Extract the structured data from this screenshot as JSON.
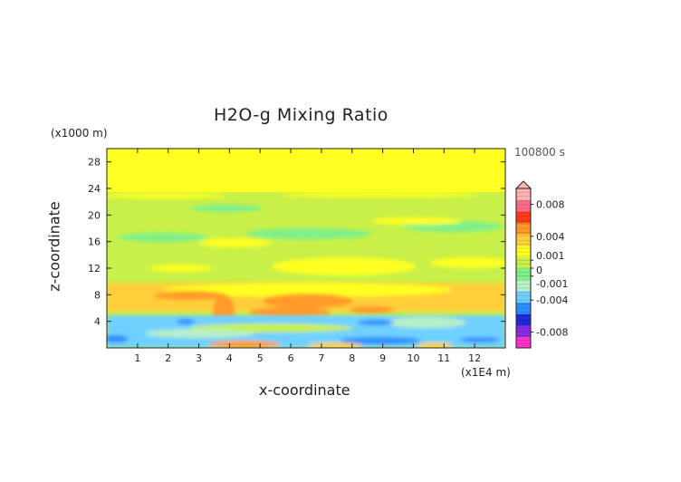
{
  "title": "H2O-g Mixing Ratio",
  "time_label": "100800 s",
  "chart_data": {
    "type": "heatmap",
    "title": "H2O-g Mixing Ratio",
    "xlabel": "x-coordinate",
    "ylabel": "z-coordinate",
    "x_unit": "(x1E4 m)",
    "y_unit": "(x1000 m)",
    "xlim": [
      0,
      13
    ],
    "ylim": [
      0,
      30
    ],
    "x_ticks": [
      "1",
      "2",
      "3",
      "4",
      "5",
      "6",
      "7",
      "8",
      "9",
      "10",
      "11",
      "12"
    ],
    "y_ticks": [
      "4",
      "8",
      "12",
      "16",
      "20",
      "24",
      "28"
    ],
    "colorbar": {
      "range": [
        -0.01,
        0.01
      ],
      "tick_labels": [
        "0.008",
        "0.004",
        "0.001",
        "0",
        "-0.001",
        "-0.004",
        "-0.008"
      ],
      "tick_values": [
        0.008,
        0.004,
        0.001,
        0,
        -0.001,
        -0.004,
        -0.008
      ],
      "colors": [
        "#ff33cc",
        "#8a2be2",
        "#1e2bd6",
        "#2e8cff",
        "#6fd0ff",
        "#b8f0c8",
        "#7ff08a",
        "#c8f048",
        "#ffff22",
        "#ffcf3a",
        "#ff9a2a",
        "#ff3a1a",
        "#ff6a8a",
        "#ffb3b3"
      ]
    },
    "regions": [
      {
        "level": "yellow",
        "x": [
          0,
          13
        ],
        "z": [
          22.5,
          30
        ]
      },
      {
        "level": "yellow-green",
        "x": [
          0,
          13
        ],
        "z": [
          9,
          22.5
        ]
      },
      {
        "level": "yellow-orange",
        "x": [
          0,
          13
        ],
        "z": [
          6.5,
          9
        ]
      },
      {
        "level": "orange",
        "x": [
          3.4,
          7.5
        ],
        "z": [
          2,
          7.5
        ]
      },
      {
        "level": "cyan",
        "x": [
          0,
          13
        ],
        "z": [
          1,
          5
        ]
      },
      {
        "level": "blue",
        "x": [
          0,
          1.5
        ],
        "z": [
          0.5,
          2
        ]
      }
    ]
  }
}
